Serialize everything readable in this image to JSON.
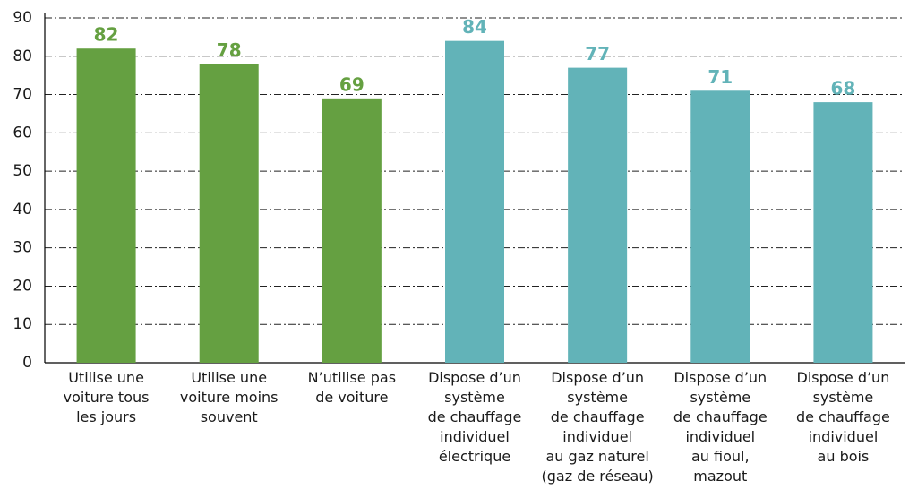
{
  "chart_data": {
    "type": "bar",
    "categories": [
      "Utilise une\nvoiture tous\nles jours",
      "Utilise une\nvoiture moins\nsouvent",
      "N’utilise pas\nde voiture",
      "Dispose d’un\nsystème\nde chauffage\nindividuel\nélectrique",
      "Dispose d’un\nsystème\nde chauffage\nindividuel\nau gaz naturel\n(gaz de réseau)",
      "Dispose d’un\nsystème\nde chauffage\nindividuel\nau fioul,\nmazout",
      "Dispose d’un\nsystème\nde chauffage\nindividuel\nau bois"
    ],
    "values": [
      82,
      78,
      69,
      84,
      77,
      71,
      68
    ],
    "colors": [
      "#65a041",
      "#65a041",
      "#65a041",
      "#62b3b8",
      "#62b3b8",
      "#62b3b8",
      "#62b3b8"
    ],
    "ylim": [
      0,
      90
    ],
    "yticks": [
      0,
      10,
      20,
      30,
      40,
      50,
      60,
      70,
      80,
      90
    ],
    "grid": true
  }
}
